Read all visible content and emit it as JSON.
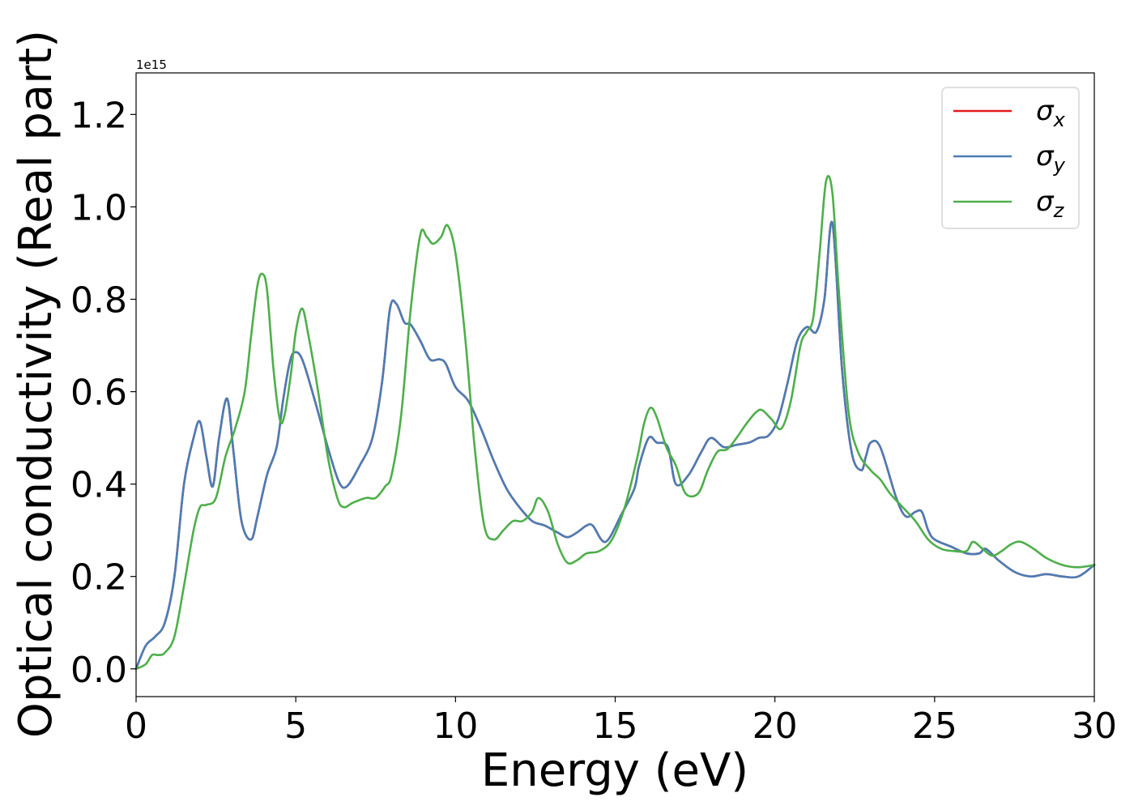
{
  "chart_data": {
    "type": "line",
    "xlabel": "Energy (eV)",
    "ylabel": "Optical conductivity (Real part)",
    "y_offset_label": "1e15",
    "xlim": [
      0,
      30
    ],
    "ylim": [
      -0.06,
      1.29
    ],
    "xticks": [
      0,
      5,
      10,
      15,
      20,
      25,
      30
    ],
    "xtick_labels": [
      "0",
      "5",
      "10",
      "15",
      "20",
      "25",
      "30"
    ],
    "yticks": [
      0.0,
      0.2,
      0.4,
      0.6,
      0.8,
      1.0,
      1.2
    ],
    "ytick_labels": [
      "0.0",
      "0.2",
      "0.4",
      "0.6",
      "0.8",
      "1.0",
      "1.2"
    ],
    "grid": false,
    "legend_position": "top-right",
    "series": [
      {
        "name": "σx",
        "symbol": "σ",
        "subscript": "x",
        "color": "#e41a1c",
        "x": [
          0,
          0.3,
          0.6,
          0.9,
          1.2,
          1.5,
          1.8,
          2.0,
          2.2,
          2.4,
          2.6,
          2.85,
          3.05,
          3.3,
          3.6,
          3.8,
          4.1,
          4.4,
          4.6,
          4.8,
          4.95,
          5.2,
          5.6,
          6.0,
          6.35,
          6.6,
          7.0,
          7.4,
          7.7,
          7.95,
          8.15,
          8.4,
          8.6,
          8.9,
          9.2,
          9.5,
          9.7,
          10.0,
          10.4,
          10.8,
          11.2,
          11.6,
          12.0,
          12.4,
          12.8,
          13.2,
          13.5,
          13.8,
          14.1,
          14.3,
          14.7,
          15.2,
          15.6,
          15.75,
          16.05,
          16.3,
          16.65,
          16.9,
          17.3,
          17.7,
          18.0,
          18.4,
          18.8,
          19.2,
          19.5,
          19.8,
          20.1,
          20.4,
          20.7,
          21.0,
          21.3,
          21.55,
          21.8,
          22.1,
          22.4,
          22.7,
          22.85,
          23.0,
          23.3,
          23.8,
          24.1,
          24.4,
          24.6,
          24.8,
          25.0,
          25.5,
          26.0,
          26.4,
          26.6,
          27.0,
          27.5,
          28.0,
          28.5,
          29.0,
          29.5,
          30.0
        ],
        "values": [
          0,
          0.05,
          0.07,
          0.1,
          0.2,
          0.4,
          0.5,
          0.535,
          0.46,
          0.395,
          0.5,
          0.585,
          0.47,
          0.32,
          0.28,
          0.33,
          0.42,
          0.48,
          0.58,
          0.66,
          0.685,
          0.67,
          0.58,
          0.48,
          0.405,
          0.395,
          0.44,
          0.5,
          0.62,
          0.78,
          0.79,
          0.75,
          0.745,
          0.71,
          0.67,
          0.67,
          0.66,
          0.61,
          0.58,
          0.52,
          0.45,
          0.39,
          0.35,
          0.32,
          0.31,
          0.295,
          0.285,
          0.295,
          0.31,
          0.31,
          0.275,
          0.335,
          0.39,
          0.44,
          0.5,
          0.49,
          0.48,
          0.4,
          0.42,
          0.47,
          0.5,
          0.48,
          0.485,
          0.49,
          0.5,
          0.505,
          0.54,
          0.62,
          0.71,
          0.74,
          0.73,
          0.8,
          0.965,
          0.65,
          0.47,
          0.43,
          0.46,
          0.49,
          0.48,
          0.37,
          0.33,
          0.34,
          0.34,
          0.3,
          0.28,
          0.265,
          0.25,
          0.25,
          0.26,
          0.235,
          0.21,
          0.2,
          0.205,
          0.2,
          0.2,
          0.225
        ]
      },
      {
        "name": "σy",
        "symbol": "σ",
        "subscript": "y",
        "color": "#4a7db5",
        "x": [
          0,
          0.3,
          0.6,
          0.9,
          1.2,
          1.5,
          1.8,
          2.0,
          2.2,
          2.4,
          2.6,
          2.85,
          3.05,
          3.3,
          3.6,
          3.8,
          4.1,
          4.4,
          4.6,
          4.8,
          4.95,
          5.2,
          5.6,
          6.0,
          6.35,
          6.6,
          7.0,
          7.4,
          7.7,
          7.95,
          8.15,
          8.4,
          8.6,
          8.9,
          9.2,
          9.5,
          9.7,
          10.0,
          10.4,
          10.8,
          11.2,
          11.6,
          12.0,
          12.4,
          12.8,
          13.2,
          13.5,
          13.8,
          14.1,
          14.3,
          14.7,
          15.2,
          15.6,
          15.75,
          16.05,
          16.3,
          16.65,
          16.9,
          17.3,
          17.7,
          18.0,
          18.4,
          18.8,
          19.2,
          19.5,
          19.8,
          20.1,
          20.4,
          20.7,
          21.0,
          21.3,
          21.55,
          21.8,
          22.1,
          22.4,
          22.7,
          22.85,
          23.0,
          23.3,
          23.8,
          24.1,
          24.4,
          24.6,
          24.8,
          25.0,
          25.5,
          26.0,
          26.4,
          26.6,
          27.0,
          27.5,
          28.0,
          28.5,
          29.0,
          29.5,
          30.0
        ],
        "values": [
          0,
          0.05,
          0.07,
          0.1,
          0.2,
          0.4,
          0.5,
          0.535,
          0.46,
          0.395,
          0.5,
          0.585,
          0.47,
          0.32,
          0.28,
          0.33,
          0.42,
          0.48,
          0.58,
          0.66,
          0.685,
          0.67,
          0.58,
          0.48,
          0.405,
          0.395,
          0.44,
          0.5,
          0.62,
          0.78,
          0.79,
          0.75,
          0.745,
          0.71,
          0.67,
          0.67,
          0.66,
          0.61,
          0.58,
          0.52,
          0.45,
          0.39,
          0.35,
          0.32,
          0.31,
          0.295,
          0.285,
          0.295,
          0.31,
          0.31,
          0.275,
          0.335,
          0.39,
          0.44,
          0.5,
          0.49,
          0.48,
          0.4,
          0.42,
          0.47,
          0.5,
          0.48,
          0.485,
          0.49,
          0.5,
          0.505,
          0.54,
          0.62,
          0.71,
          0.74,
          0.73,
          0.8,
          0.965,
          0.65,
          0.47,
          0.43,
          0.46,
          0.49,
          0.48,
          0.37,
          0.33,
          0.34,
          0.34,
          0.3,
          0.28,
          0.265,
          0.25,
          0.25,
          0.26,
          0.235,
          0.21,
          0.2,
          0.205,
          0.2,
          0.2,
          0.225
        ]
      },
      {
        "name": "σz",
        "symbol": "σ",
        "subscript": "z",
        "color": "#4daf4a",
        "x": [
          0,
          0.3,
          0.5,
          0.7,
          0.9,
          1.2,
          1.5,
          1.8,
          2.0,
          2.2,
          2.5,
          2.8,
          3.1,
          3.4,
          3.6,
          3.8,
          3.95,
          4.1,
          4.3,
          4.5,
          4.65,
          4.85,
          5.0,
          5.2,
          5.4,
          5.7,
          6.0,
          6.3,
          6.5,
          6.8,
          7.2,
          7.5,
          7.8,
          8.0,
          8.3,
          8.6,
          8.9,
          9.1,
          9.3,
          9.55,
          9.75,
          10.0,
          10.3,
          10.6,
          10.9,
          11.2,
          11.5,
          11.8,
          12.1,
          12.4,
          12.6,
          12.9,
          13.2,
          13.5,
          13.8,
          14.1,
          14.5,
          14.9,
          15.3,
          15.7,
          15.9,
          16.1,
          16.3,
          16.6,
          16.9,
          17.2,
          17.6,
          17.9,
          18.2,
          18.5,
          18.8,
          19.1,
          19.4,
          19.6,
          19.9,
          20.2,
          20.5,
          20.8,
          21.0,
          21.2,
          21.4,
          21.6,
          21.8,
          22.0,
          22.3,
          22.6,
          23.0,
          23.3,
          23.6,
          24.0,
          24.4,
          24.8,
          25.2,
          25.6,
          26.0,
          26.2,
          26.5,
          26.8,
          27.1,
          27.4,
          27.7,
          28.1,
          28.5,
          29.0,
          29.5,
          30.0
        ],
        "values": [
          0,
          0.01,
          0.03,
          0.03,
          0.035,
          0.07,
          0.18,
          0.3,
          0.35,
          0.355,
          0.37,
          0.46,
          0.52,
          0.6,
          0.72,
          0.83,
          0.855,
          0.82,
          0.65,
          0.54,
          0.55,
          0.64,
          0.73,
          0.78,
          0.72,
          0.6,
          0.46,
          0.37,
          0.35,
          0.36,
          0.37,
          0.37,
          0.395,
          0.42,
          0.55,
          0.78,
          0.94,
          0.935,
          0.92,
          0.935,
          0.96,
          0.9,
          0.72,
          0.48,
          0.31,
          0.28,
          0.3,
          0.32,
          0.32,
          0.34,
          0.37,
          0.34,
          0.27,
          0.23,
          0.235,
          0.25,
          0.255,
          0.28,
          0.35,
          0.46,
          0.53,
          0.565,
          0.545,
          0.48,
          0.44,
          0.38,
          0.38,
          0.43,
          0.47,
          0.475,
          0.5,
          0.53,
          0.555,
          0.56,
          0.54,
          0.52,
          0.58,
          0.7,
          0.73,
          0.76,
          0.9,
          1.055,
          1.03,
          0.82,
          0.56,
          0.47,
          0.43,
          0.41,
          0.38,
          0.35,
          0.32,
          0.28,
          0.26,
          0.255,
          0.255,
          0.275,
          0.26,
          0.245,
          0.255,
          0.27,
          0.275,
          0.26,
          0.24,
          0.225,
          0.22,
          0.225
        ]
      }
    ]
  }
}
